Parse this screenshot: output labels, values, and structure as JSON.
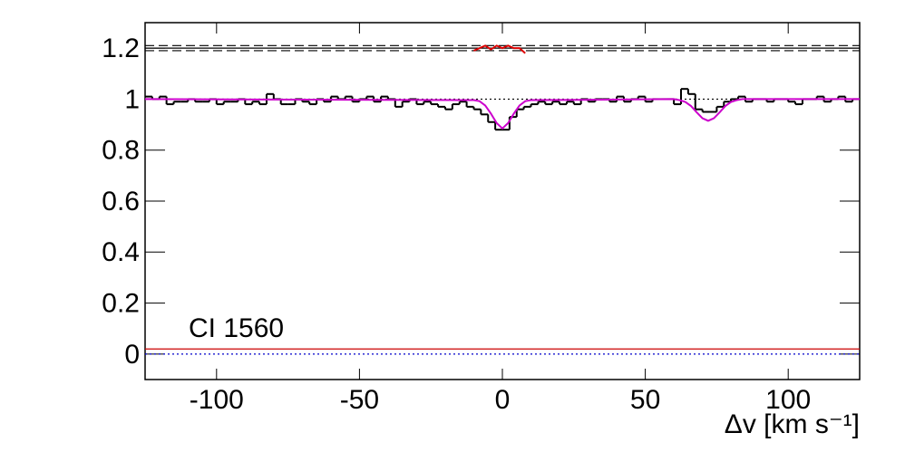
{
  "chart_data": {
    "type": "histogram",
    "annotation": "CI 1560",
    "xlabel": "Δv [km s⁻¹]",
    "xlim": [
      -125,
      125
    ],
    "ylim": [
      -0.1,
      1.3
    ],
    "xticks": [
      -100,
      -50,
      0,
      50,
      100
    ],
    "yticks": [
      0,
      0.2,
      0.4,
      0.6,
      0.8,
      1,
      1.2
    ],
    "color": "#000000",
    "bins": [
      -125,
      -122.5,
      -120,
      -117.5,
      -115,
      -112.5,
      -110,
      -107.5,
      -105,
      -102.5,
      -100,
      -97.5,
      -95,
      -92.5,
      -90,
      -87.5,
      -85,
      -82.5,
      -80,
      -77.5,
      -75,
      -72.5,
      -70,
      -67.5,
      -65,
      -62.5,
      -60,
      -57.5,
      -55,
      -52.5,
      -50,
      -47.5,
      -45,
      -42.5,
      -40,
      -37.5,
      -35,
      -32.5,
      -30,
      -27.5,
      -25,
      -22.5,
      -20,
      -17.5,
      -15,
      -12.5,
      -10,
      -7.5,
      -5,
      -2.5,
      0,
      2.5,
      5,
      7.5,
      10,
      12.5,
      15,
      17.5,
      20,
      22.5,
      25,
      27.5,
      30,
      32.5,
      35,
      37.5,
      40,
      42.5,
      45,
      47.5,
      50,
      52.5,
      55,
      57.5,
      60,
      62.5,
      65,
      67.5,
      70,
      72.5,
      75,
      77.5,
      80,
      82.5,
      85,
      87.5,
      90,
      92.5,
      95,
      97.5,
      100,
      102.5,
      105,
      107.5,
      110,
      112.5,
      115,
      117.5,
      120,
      122.5,
      125
    ],
    "values": [
      1.01,
      1.0,
      1.01,
      0.98,
      0.99,
      0.99,
      1.0,
      0.99,
      0.99,
      1.0,
      0.98,
      0.99,
      0.99,
      1.0,
      0.98,
      0.99,
      0.98,
      1.02,
      1.0,
      0.98,
      0.98,
      1.0,
      0.99,
      0.98,
      1.0,
      0.99,
      1.01,
      1.0,
      1.01,
      0.99,
      1.0,
      1.01,
      0.99,
      1.01,
      1.0,
      0.97,
      0.99,
      1.0,
      0.98,
      0.99,
      0.98,
      0.97,
      0.96,
      0.98,
      0.99,
      0.97,
      0.96,
      0.94,
      0.91,
      0.88,
      0.88,
      0.93,
      0.96,
      0.97,
      0.98,
      0.99,
      0.98,
      0.99,
      0.98,
      0.99,
      0.98,
      1.0,
      0.99,
      1.0,
      1.0,
      0.99,
      1.01,
      0.99,
      1.0,
      1.01,
      0.99,
      1.0,
      1.0,
      1.0,
      0.98,
      1.04,
      1.02,
      0.96,
      0.95,
      0.95,
      0.97,
      0.99,
      1.0,
      1.01,
      0.99,
      1.0,
      1.0,
      0.99,
      1.0,
      1.0,
      0.99,
      0.98,
      1.0,
      1.0,
      1.01,
      0.99,
      1.0,
      1.01,
      0.99,
      1.0
    ],
    "model": {
      "color": "#cc00cc",
      "x": [
        -125,
        -10,
        -8,
        -6,
        -4,
        -2,
        0,
        2,
        4,
        6,
        8,
        10,
        60,
        62,
        64,
        66,
        68,
        70,
        72,
        74,
        76,
        78,
        80,
        82,
        84,
        125
      ],
      "values": [
        1,
        0.996,
        0.992,
        0.975,
        0.943,
        0.906,
        0.885,
        0.906,
        0.943,
        0.975,
        0.992,
        0.996,
        1,
        0.996,
        0.989,
        0.973,
        0.948,
        0.925,
        0.915,
        0.925,
        0.948,
        0.973,
        0.989,
        0.996,
        1,
        1
      ]
    },
    "residual": {
      "color": "#dd0000",
      "x": [
        -10,
        -8,
        -6,
        -4,
        -2,
        0,
        2,
        4,
        6,
        8
      ],
      "values": [
        1.19,
        1.2,
        1.21,
        1.195,
        1.21,
        1.2,
        1.21,
        1.2,
        1.2,
        1.18
      ]
    },
    "reference_lines": [
      {
        "y": 1,
        "color": "#000000",
        "dash": "dotted"
      },
      {
        "y": 0,
        "color": "#0000cc",
        "dash": "dotted"
      },
      {
        "y": 0.02,
        "color": "#cc0000",
        "dash": "solid"
      },
      {
        "y": 1.21,
        "color": "#000000",
        "dash": "dashed"
      },
      {
        "y": 1.2,
        "color": "#000000",
        "dash": "solid"
      },
      {
        "y": 1.19,
        "color": "#000000",
        "dash": "dashed"
      }
    ]
  }
}
